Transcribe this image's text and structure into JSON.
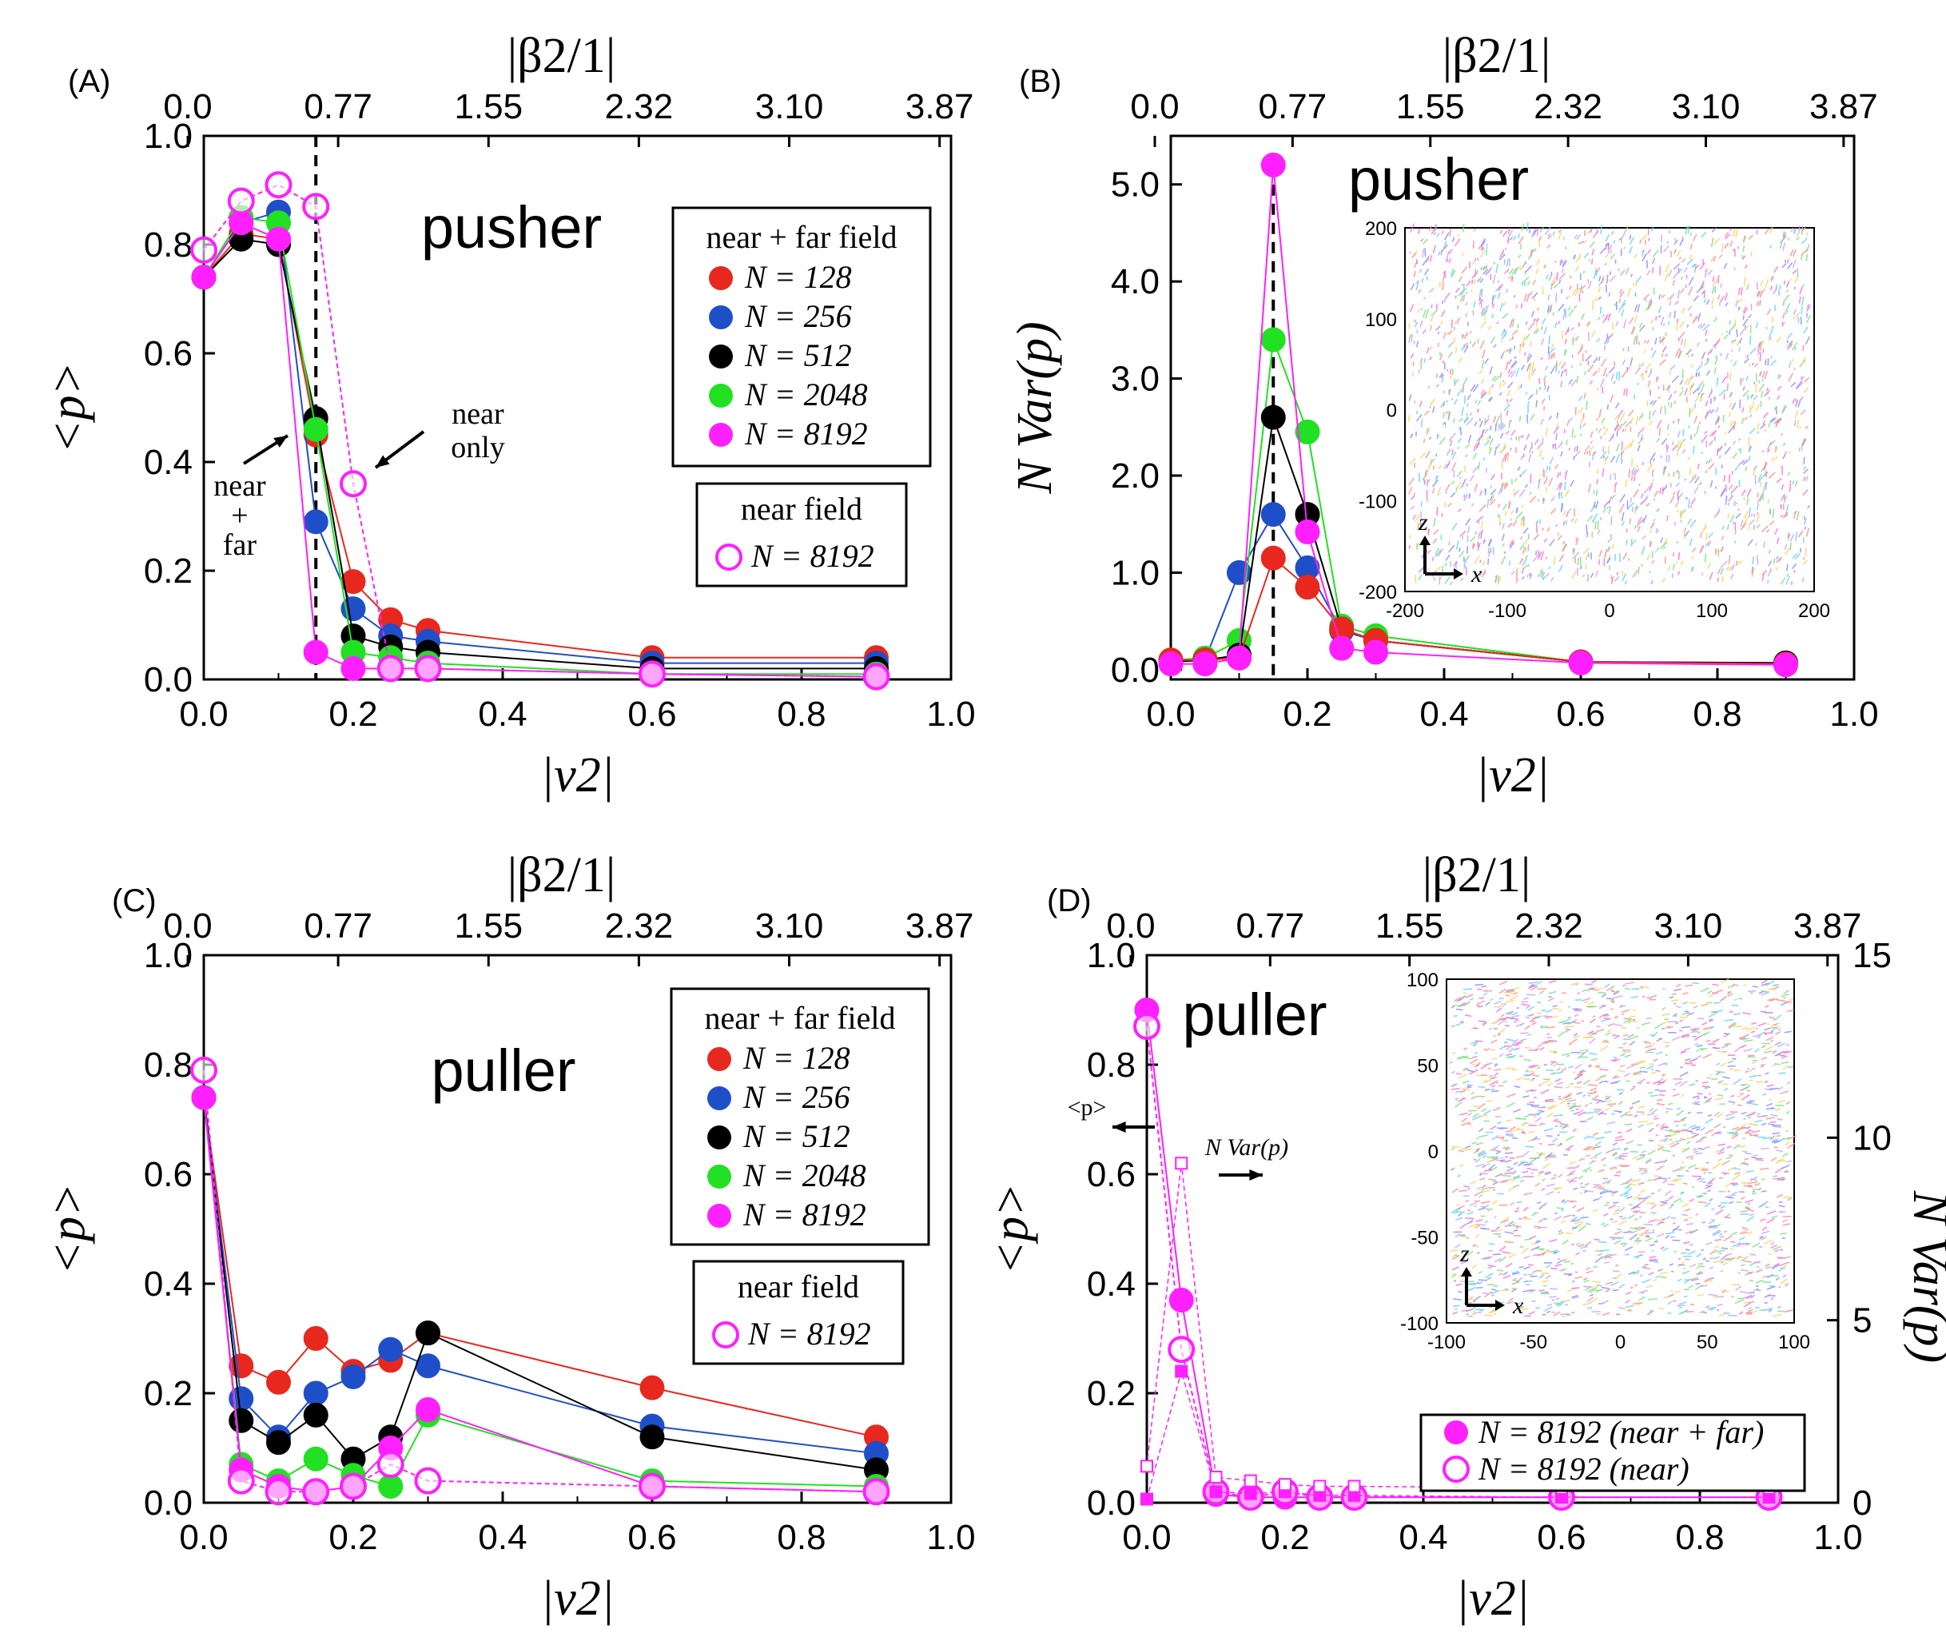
{
  "colors": {
    "N128": "#e8281e",
    "N256": "#1f4fc8",
    "N512": "#000000",
    "N2048": "#22e022",
    "N8192": "#ff1fff"
  },
  "chart_data": [
    {
      "panel": "(A)",
      "type": "line",
      "title": "pusher",
      "xlabel": "|v2|",
      "ylabel": "<p>",
      "top_axis_label": "|β2/1|",
      "xlim": [
        0,
        1
      ],
      "ylim": [
        0,
        1
      ],
      "x_ticks": [
        "0.0",
        "0.2",
        "0.4",
        "0.6",
        "0.8",
        "1.0"
      ],
      "y_ticks": [
        "0.0",
        "0.2",
        "0.4",
        "0.6",
        "0.8",
        "1.0"
      ],
      "top_ticks": [
        "0.0",
        "0.77",
        "1.55",
        "2.32",
        "3.10",
        "3.87"
      ],
      "vline": 0.15,
      "legend_title": "near + far field",
      "legend2_title": "near field",
      "annotations": [
        "near",
        "+",
        "far",
        "near",
        "only"
      ],
      "series": [
        {
          "name": "N = 128",
          "color_key": "N128",
          "filled": true,
          "x": [
            0,
            0.05,
            0.1,
            0.15,
            0.2,
            0.25,
            0.3,
            0.6,
            0.9
          ],
          "values": [
            0.74,
            0.82,
            0.81,
            0.45,
            0.18,
            0.11,
            0.09,
            0.04,
            0.04
          ]
        },
        {
          "name": "N = 256",
          "color_key": "N256",
          "filled": true,
          "x": [
            0,
            0.05,
            0.1,
            0.15,
            0.2,
            0.25,
            0.3,
            0.6,
            0.9
          ],
          "values": [
            0.74,
            0.84,
            0.86,
            0.29,
            0.13,
            0.08,
            0.07,
            0.03,
            0.03
          ]
        },
        {
          "name": "N = 512",
          "color_key": "N512",
          "filled": true,
          "x": [
            0,
            0.05,
            0.1,
            0.15,
            0.2,
            0.25,
            0.3,
            0.6,
            0.9
          ],
          "values": [
            0.74,
            0.81,
            0.8,
            0.48,
            0.08,
            0.06,
            0.05,
            0.02,
            0.02
          ]
        },
        {
          "name": "N = 2048",
          "color_key": "N2048",
          "filled": true,
          "x": [
            0,
            0.05,
            0.1,
            0.15,
            0.2,
            0.25,
            0.3,
            0.6,
            0.9
          ],
          "values": [
            0.74,
            0.85,
            0.84,
            0.46,
            0.05,
            0.04,
            0.03,
            0.01,
            0.01
          ]
        },
        {
          "name": "N = 8192",
          "color_key": "N8192",
          "filled": true,
          "x": [
            0,
            0.05,
            0.1,
            0.15,
            0.2,
            0.25,
            0.3,
            0.6,
            0.9
          ],
          "values": [
            0.74,
            0.84,
            0.81,
            0.05,
            0.02,
            0.02,
            0.02,
            0.01,
            0.005
          ]
        },
        {
          "name": "N = 8192",
          "color_key": "N8192",
          "filled": false,
          "legend_group": "near field",
          "x": [
            0,
            0.05,
            0.1,
            0.15,
            0.2,
            0.25,
            0.3,
            0.6,
            0.9
          ],
          "values": [
            0.79,
            0.88,
            0.91,
            0.87,
            0.36,
            0.02,
            0.02,
            0.01,
            0.005
          ]
        }
      ]
    },
    {
      "panel": "(B)",
      "type": "line",
      "title": "pusher",
      "xlabel": "|v2|",
      "ylabel": "N Var(p)",
      "top_axis_label": "|β2/1|",
      "xlim": [
        0,
        1
      ],
      "ylim": [
        -0.1,
        5.5
      ],
      "x_ticks": [
        "0.0",
        "0.2",
        "0.4",
        "0.6",
        "0.8",
        "1.0"
      ],
      "y_ticks": [
        "0.0",
        "1.0",
        "2.0",
        "3.0",
        "4.0",
        "5.0"
      ],
      "top_ticks": [
        "0.0",
        "0.77",
        "1.55",
        "2.32",
        "3.10",
        "3.87"
      ],
      "vline": 0.15,
      "inset": {
        "x_ticks": [
          "-200",
          "-100",
          "0",
          "100",
          "200"
        ],
        "y_ticks": [
          "200",
          "100",
          "0",
          "-100",
          "-200"
        ],
        "xlabel": "x",
        "ylabel": "z"
      },
      "series": [
        {
          "name": "N = 256",
          "color_key": "N256",
          "x": [
            0,
            0.05,
            0.1,
            0.15,
            0.2,
            0.25,
            0.3,
            0.6,
            0.9
          ],
          "values": [
            0.08,
            0.1,
            1.0,
            1.6,
            1.05,
            0.4,
            0.3,
            0.08,
            0.07
          ]
        },
        {
          "name": "N = 2048",
          "color_key": "N2048",
          "x": [
            0,
            0.05,
            0.1,
            0.15,
            0.2,
            0.25,
            0.3,
            0.6,
            0.9
          ],
          "values": [
            0.1,
            0.12,
            0.3,
            3.4,
            2.45,
            0.45,
            0.35,
            0.08,
            0.07
          ]
        },
        {
          "name": "N = 512",
          "color_key": "N512",
          "x": [
            0,
            0.05,
            0.1,
            0.15,
            0.2,
            0.25,
            0.3,
            0.6,
            0.9
          ],
          "values": [
            0.08,
            0.1,
            0.15,
            2.6,
            1.6,
            0.42,
            0.3,
            0.08,
            0.07
          ]
        },
        {
          "name": "N = 128",
          "color_key": "N128",
          "x": [
            0,
            0.05,
            0.1,
            0.15,
            0.2,
            0.25,
            0.3,
            0.6,
            0.9
          ],
          "values": [
            0.1,
            0.1,
            0.12,
            1.15,
            0.85,
            0.42,
            0.3,
            0.08,
            0.06
          ]
        },
        {
          "name": "N = 8192",
          "color_key": "N8192",
          "x": [
            0,
            0.05,
            0.1,
            0.15,
            0.2,
            0.25,
            0.3,
            0.6,
            0.9
          ],
          "values": [
            0.06,
            0.06,
            0.12,
            5.2,
            1.42,
            0.22,
            0.18,
            0.07,
            0.05
          ]
        }
      ]
    },
    {
      "panel": "(C)",
      "type": "line",
      "title": "puller",
      "xlabel": "|v2|",
      "ylabel": "<p>",
      "top_axis_label": "|β2/1|",
      "xlim": [
        0,
        1
      ],
      "ylim": [
        0,
        1
      ],
      "x_ticks": [
        "0.0",
        "0.2",
        "0.4",
        "0.6",
        "0.8",
        "1.0"
      ],
      "y_ticks": [
        "0.0",
        "0.2",
        "0.4",
        "0.6",
        "0.8",
        "1.0"
      ],
      "top_ticks": [
        "0.0",
        "0.77",
        "1.55",
        "2.32",
        "3.10",
        "3.87"
      ],
      "legend_title": "near + far field",
      "legend2_title": "near field",
      "series": [
        {
          "name": "N = 128",
          "color_key": "N128",
          "filled": true,
          "x": [
            0,
            0.05,
            0.1,
            0.15,
            0.2,
            0.25,
            0.3,
            0.6,
            0.9
          ],
          "values": [
            0.74,
            0.25,
            0.22,
            0.3,
            0.24,
            0.26,
            0.31,
            0.21,
            0.12
          ]
        },
        {
          "name": "N = 256",
          "color_key": "N256",
          "filled": true,
          "x": [
            0,
            0.05,
            0.1,
            0.15,
            0.2,
            0.25,
            0.3,
            0.6,
            0.9
          ],
          "values": [
            0.74,
            0.19,
            0.12,
            0.2,
            0.23,
            0.28,
            0.25,
            0.14,
            0.09
          ]
        },
        {
          "name": "N = 512",
          "color_key": "N512",
          "filled": true,
          "x": [
            0,
            0.05,
            0.1,
            0.15,
            0.2,
            0.25,
            0.3,
            0.6,
            0.9
          ],
          "values": [
            0.74,
            0.15,
            0.11,
            0.16,
            0.08,
            0.12,
            0.31,
            0.12,
            0.06
          ]
        },
        {
          "name": "N = 2048",
          "color_key": "N2048",
          "filled": true,
          "x": [
            0,
            0.05,
            0.1,
            0.15,
            0.2,
            0.25,
            0.3,
            0.6,
            0.9
          ],
          "values": [
            0.74,
            0.07,
            0.04,
            0.08,
            0.05,
            0.03,
            0.16,
            0.04,
            0.03
          ]
        },
        {
          "name": "N = 8192",
          "color_key": "N8192",
          "filled": true,
          "x": [
            0,
            0.05,
            0.1,
            0.15,
            0.2,
            0.25,
            0.3,
            0.6,
            0.9
          ],
          "values": [
            0.74,
            0.06,
            0.03,
            0.02,
            0.03,
            0.1,
            0.17,
            0.03,
            0.02
          ]
        },
        {
          "name": "N = 8192",
          "color_key": "N8192",
          "filled": false,
          "legend_group": "near field",
          "x": [
            0,
            0.05,
            0.1,
            0.15,
            0.2,
            0.25,
            0.3,
            0.6,
            0.9
          ],
          "values": [
            0.79,
            0.04,
            0.02,
            0.02,
            0.03,
            0.07,
            0.04,
            0.03,
            0.02
          ]
        }
      ]
    },
    {
      "panel": "(D)",
      "type": "line",
      "title": "puller",
      "xlabel": "|v2|",
      "ylabel": "<p>",
      "y2label": "N Var(p)",
      "top_axis_label": "|β2/1|",
      "xlim": [
        0,
        1
      ],
      "ylim": [
        0,
        1
      ],
      "y2lim": [
        0,
        15
      ],
      "x_ticks": [
        "0.0",
        "0.2",
        "0.4",
        "0.6",
        "0.8",
        "1.0"
      ],
      "y_ticks": [
        "0.0",
        "0.2",
        "0.4",
        "0.6",
        "0.8",
        "1.0"
      ],
      "y2_ticks": [
        "0",
        "5",
        "10",
        "15"
      ],
      "top_ticks": [
        "0.0",
        "0.77",
        "1.55",
        "2.32",
        "3.10",
        "3.87"
      ],
      "arrow_labels": [
        "<p>",
        "N Var(p)"
      ],
      "inset": {
        "x_ticks": [
          "-100",
          "-50",
          "0",
          "50",
          "100"
        ],
        "y_ticks": [
          "100",
          "50",
          "0",
          "-50",
          "-100"
        ],
        "xlabel": "x",
        "ylabel": "z"
      },
      "series": [
        {
          "name": "N = 8192 (near + far)",
          "color_key": "N8192",
          "filled": true,
          "axis": "left",
          "x": [
            0,
            0.05,
            0.1,
            0.15,
            0.2,
            0.25,
            0.3,
            0.6,
            0.9
          ],
          "values": [
            0.9,
            0.37,
            0.015,
            0.01,
            0.01,
            0.01,
            0.01,
            0.01,
            0.01
          ]
        },
        {
          "name": "N = 8192 (near)",
          "color_key": "N8192",
          "filled": false,
          "axis": "left",
          "x": [
            0,
            0.05,
            0.1,
            0.15,
            0.2,
            0.25,
            0.3,
            0.6,
            0.9
          ],
          "values": [
            0.87,
            0.28,
            0.02,
            0.01,
            0.02,
            0.01,
            0.01,
            0.01,
            0.01
          ]
        },
        {
          "name": "N Var(p) near + far",
          "color_key": "N8192",
          "filled": true,
          "marker": "square",
          "axis": "right",
          "x": [
            0,
            0.05,
            0.1,
            0.15,
            0.2,
            0.25,
            0.3,
            0.6,
            0.9
          ],
          "values": [
            0.1,
            3.6,
            0.3,
            0.25,
            0.3,
            0.2,
            0.2,
            0.15,
            0.15
          ]
        },
        {
          "name": "N Var(p) near",
          "color_key": "N8192",
          "filled": false,
          "marker": "square",
          "axis": "right",
          "x": [
            0,
            0.05,
            0.1,
            0.15,
            0.2,
            0.25,
            0.3,
            0.6,
            0.9
          ],
          "values": [
            1.0,
            9.3,
            0.7,
            0.6,
            0.5,
            0.45,
            0.45,
            0.4,
            0.4
          ]
        }
      ]
    }
  ]
}
